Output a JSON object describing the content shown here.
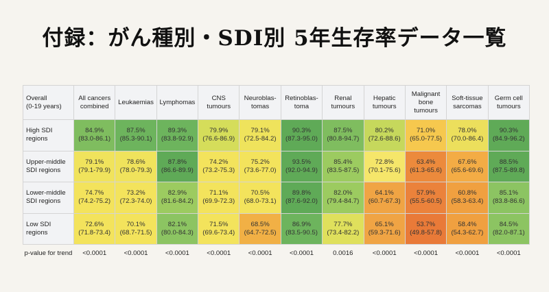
{
  "title": "付録：がん種別・SDI別 5年生存率データ一覧",
  "table": {
    "corner": [
      "Overall",
      "(0-19 years)"
    ],
    "columns": [
      [
        "All cancers",
        "combined"
      ],
      [
        "Leukaemias"
      ],
      [
        "Lymphomas"
      ],
      [
        "CNS",
        "tumours"
      ],
      [
        "Neuroblas-",
        "tomas"
      ],
      [
        "Retinoblas-",
        "toma"
      ],
      [
        "Renal",
        "tumours"
      ],
      [
        "Hepatic",
        "tumours"
      ],
      [
        "Malignant",
        "bone",
        "tumours"
      ],
      [
        "Soft-tissue",
        "sarcomas"
      ],
      [
        "Germ cell",
        "tumours"
      ]
    ],
    "rows": [
      {
        "label": [
          "High SDI",
          "regions"
        ],
        "cells": [
          [
            "84.9%",
            "(83.0-86.1)",
            "#7fbd5f"
          ],
          [
            "87.5%",
            "(85.3-90.1)",
            "#6db45d"
          ],
          [
            "89.3%",
            "(83.8-92.9)",
            "#6db45d"
          ],
          [
            "79.9%",
            "(76.6-86.9)",
            "#d5dd5a"
          ],
          [
            "79.1%",
            "(72.5-84.2)",
            "#efe35c"
          ],
          [
            "90.3%",
            "(87.3-95.0)",
            "#5faa57"
          ],
          [
            "87.5%",
            "(80.8-94.7)",
            "#7fbd5f"
          ],
          [
            "80.2%",
            "(72.6-88.6)",
            "#c6d85c"
          ],
          [
            "71.0%",
            "(65.0-77.5)",
            "#f6c84e"
          ],
          [
            "78.0%",
            "(70.0-86.4)",
            "#ecdf5c"
          ],
          [
            "90.3%",
            "(84.9-96.2)",
            "#5faa57"
          ]
        ]
      },
      {
        "label": [
          "Upper-middle",
          "SDI regions"
        ],
        "cells": [
          [
            "79.1%",
            "(79.1-79.9)",
            "#f0e35c"
          ],
          [
            "78.6%",
            "(78.0-79.3)",
            "#f0e35c"
          ],
          [
            "87.8%",
            "(86.6-89.9)",
            "#5faa57"
          ],
          [
            "74.2%",
            "(73.2-75.3)",
            "#f3e35c"
          ],
          [
            "75.2%",
            "(73.6-77.0)",
            "#f3e35c"
          ],
          [
            "93.5%",
            "(92.0-94.9)",
            "#5faa57"
          ],
          [
            "85.4%",
            "(83.5-87.5)",
            "#9ccb60"
          ],
          [
            "72.8%",
            "(70.1-75.6)",
            "#f5e66a"
          ],
          [
            "63.4%",
            "(61.3-65.6)",
            "#ec8a3c"
          ],
          [
            "67.6%",
            "(65.6-69.6)",
            "#f3ac45"
          ],
          [
            "88.5%",
            "(87.5-89.8)",
            "#5faa57"
          ]
        ]
      },
      {
        "label": [
          "Lower-middle",
          "SDI regions"
        ],
        "cells": [
          [
            "74.7%",
            "(74.2-75.2)",
            "#f3e35c"
          ],
          [
            "73.2%",
            "(72.3-74.0)",
            "#f3e35c"
          ],
          [
            "82.9%",
            "(81.6-84.2)",
            "#9ccb60"
          ],
          [
            "71.1%",
            "(69.9-72.3)",
            "#f3e35c"
          ],
          [
            "70.5%",
            "(68.0-73.1)",
            "#f3e35c"
          ],
          [
            "89.8%",
            "(87.6-92.0)",
            "#5faa57"
          ],
          [
            "82.0%",
            "(79.4-84.7)",
            "#9ccb60"
          ],
          [
            "64.1%",
            "(60.7-67.3)",
            "#f0a444"
          ],
          [
            "57.9%",
            "(55.5-60.5)",
            "#eb823b"
          ],
          [
            "60.8%",
            "(58.3-63.4)",
            "#f0a040"
          ],
          [
            "85.1%",
            "(83.8-86.6)",
            "#8cc462"
          ]
        ]
      },
      {
        "label": [
          "Low SDI",
          "regions"
        ],
        "cells": [
          [
            "72.6%",
            "(71.8-73.4)",
            "#f3e35c"
          ],
          [
            "70.1%",
            "(68.7-71.5)",
            "#f3e35c"
          ],
          [
            "82.1%",
            "(80.0-84.3)",
            "#8cc462"
          ],
          [
            "71.5%",
            "(69.6-73.4)",
            "#f3e35c"
          ],
          [
            "68.5%",
            "(64.7-72.5)",
            "#f1b045"
          ],
          [
            "86.9%",
            "(83.5-90.5)",
            "#6db45d"
          ],
          [
            "77.7%",
            "(73.4-82.2)",
            "#dfe05c"
          ],
          [
            "65.1%",
            "(59.3-71.6)",
            "#f0a444"
          ],
          [
            "53.7%",
            "(49.8-57.8)",
            "#e97a38"
          ],
          [
            "58.4%",
            "(54.3-62.7)",
            "#f0a040"
          ],
          [
            "84.5%",
            "(82.0-87.1)",
            "#8cc462"
          ]
        ]
      }
    ],
    "pvalue_label": "p-value for trend",
    "pvalues": [
      "<0.0001",
      "<0.0001",
      "<0.0001",
      "<0.0001",
      "<0.0001",
      "<0.0001",
      "0.0016",
      "<0.0001",
      "<0.0001",
      "<0.0001",
      "<0.0001"
    ]
  }
}
